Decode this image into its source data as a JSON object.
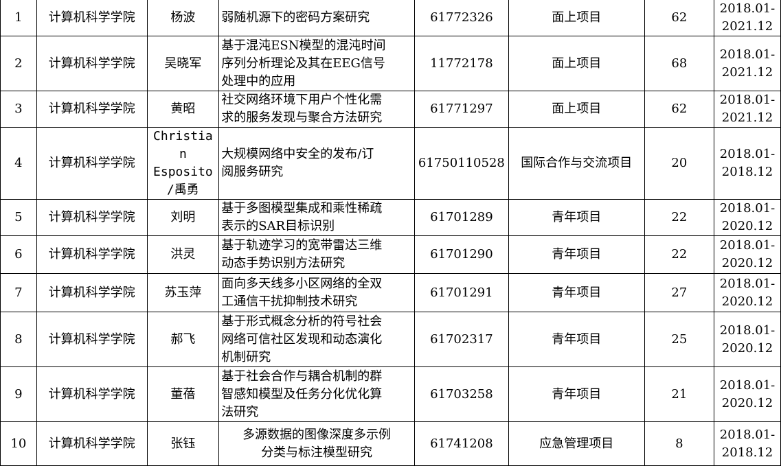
{
  "rows": [
    {
      "no": "1",
      "college": "计算机科学学院",
      "leader": [
        "杨波"
      ],
      "title": [
        "弱随机源下的密码方案研究"
      ],
      "code": "61772326",
      "type": "面上项目",
      "amount": "62",
      "period": [
        "2018.01-",
        "2021.12"
      ]
    },
    {
      "no": "2",
      "college": "计算机科学学院",
      "leader": [
        "吴晓军"
      ],
      "title": [
        "基于混沌ESN模型的混沌时间",
        "序列分析理论及其在EEG信号",
        "处理中的应用"
      ],
      "code": "11772178",
      "type": "面上项目",
      "amount": "68",
      "period": [
        "2018.01-",
        "2021.12"
      ]
    },
    {
      "no": "3",
      "college": "计算机科学学院",
      "leader": [
        "黄昭"
      ],
      "title": [
        "社交网络环境下用户个性化需",
        "求的服务发现与聚合方法研究"
      ],
      "code": "61771297",
      "type": "面上项目",
      "amount": "62",
      "period": [
        "2018.01-",
        "2021.12"
      ]
    },
    {
      "no": "4",
      "college": "计算机科学学院",
      "leader": [
        "Christia",
        "n",
        "Esposito",
        "/禹勇"
      ],
      "title": [
        "大规模网络中安全的发布/订",
        "阅服务研究"
      ],
      "code": "61750110528",
      "type": "国际合作与交流项目",
      "amount": "20",
      "period": [
        "2018.01-",
        "2018.12"
      ]
    },
    {
      "no": "5",
      "college": "计算机科学学院",
      "leader": [
        "刘明"
      ],
      "title": [
        "基于多图模型集成和乘性稀疏",
        "表示的SAR目标识别"
      ],
      "code": "61701289",
      "type": "青年项目",
      "amount": "22",
      "period": [
        "2018.01-",
        "2020.12"
      ]
    },
    {
      "no": "6",
      "college": "计算机科学学院",
      "leader": [
        "洪灵"
      ],
      "title": [
        "基于轨迹学习的宽带雷达三维",
        "动态手势识别方法研究"
      ],
      "code": "61701290",
      "type": "青年项目",
      "amount": "22",
      "period": [
        "2018.01-",
        "2020.12"
      ]
    },
    {
      "no": "7",
      "college": "计算机科学学院",
      "leader": [
        "苏玉萍"
      ],
      "title": [
        "面向多天线多小区网络的全双",
        "工通信干扰抑制技术研究"
      ],
      "code": "61701291",
      "type": "青年项目",
      "amount": "27",
      "period": [
        "2018.01-",
        "2020.12"
      ]
    },
    {
      "no": "8",
      "college": "计算机科学学院",
      "leader": [
        "郝飞"
      ],
      "title": [
        "基于形式概念分析的符号社会",
        "网络可信社区发现和动态演化",
        "机制研究"
      ],
      "code": "61702317",
      "type": "青年项目",
      "amount": "25",
      "period": [
        "2018.01-",
        "2020.12"
      ]
    },
    {
      "no": "9",
      "college": "计算机科学学院",
      "leader": [
        "董蓓"
      ],
      "title": [
        "基于社会合作与耦合机制的群",
        "智感知模型及任务分化优化算",
        "法研究"
      ],
      "code": "61703258",
      "type": "青年项目",
      "amount": "21",
      "period": [
        "2018.01-",
        "2020.12"
      ]
    },
    {
      "no": "10",
      "college": "计算机科学学院",
      "leader": [
        "张钰"
      ],
      "title": [
        "多源数据的图像深度多示例",
        "分类与标注模型研究"
      ],
      "code": "61741208",
      "type": "应急管理项目",
      "amount": "8",
      "period": [
        "2018.01-",
        "2018.12"
      ]
    }
  ]
}
